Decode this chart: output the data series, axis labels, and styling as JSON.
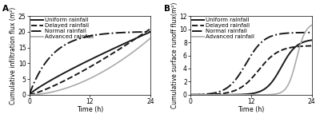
{
  "panel_A": {
    "label": "A",
    "ylabel": "Cumulative infiltration flux (m²)",
    "xlabel": "Time (h)",
    "ylim": [
      0.0,
      25.0
    ],
    "xlim": [
      0,
      24
    ],
    "yticks": [
      0.0,
      5.0,
      10.0,
      15.0,
      20.0,
      25.0
    ],
    "xticks": [
      0,
      12,
      24
    ],
    "curves": {
      "Uniform rainfall": {
        "style": "solid",
        "color": "#1a1a1a",
        "lw": 1.4
      },
      "Delayed rainfall": {
        "style": "dashed",
        "color": "#1a1a1a",
        "lw": 1.4
      },
      "Normal rainfall": {
        "style": "dashdot",
        "color": "#1a1a1a",
        "lw": 1.4
      },
      "Advanced rainfall": {
        "style": "solid",
        "color": "#aaaaaa",
        "lw": 1.2
      }
    }
  },
  "panel_B": {
    "label": "B",
    "ylabel": "Cumulative surface runoff flux(m²)",
    "xlabel": "Time (h)",
    "ylim": [
      0.0,
      12.0
    ],
    "xlim": [
      0,
      24
    ],
    "yticks": [
      0.0,
      2.0,
      4.0,
      6.0,
      8.0,
      10.0,
      12.0
    ],
    "xticks": [
      0,
      12,
      24
    ],
    "curves": {
      "Uniform rainfall": {
        "style": "solid",
        "color": "#1a1a1a",
        "lw": 1.4
      },
      "Delayed rainfall": {
        "style": "dashed",
        "color": "#1a1a1a",
        "lw": 1.4
      },
      "Normal rainfall": {
        "style": "dashdot",
        "color": "#1a1a1a",
        "lw": 1.4
      },
      "Advanced rainfall": {
        "style": "solid",
        "color": "#aaaaaa",
        "lw": 1.2
      }
    }
  },
  "legend_fontsize": 5.0,
  "axis_fontsize": 5.8,
  "tick_fontsize": 5.5,
  "label_fontsize": 7.5
}
